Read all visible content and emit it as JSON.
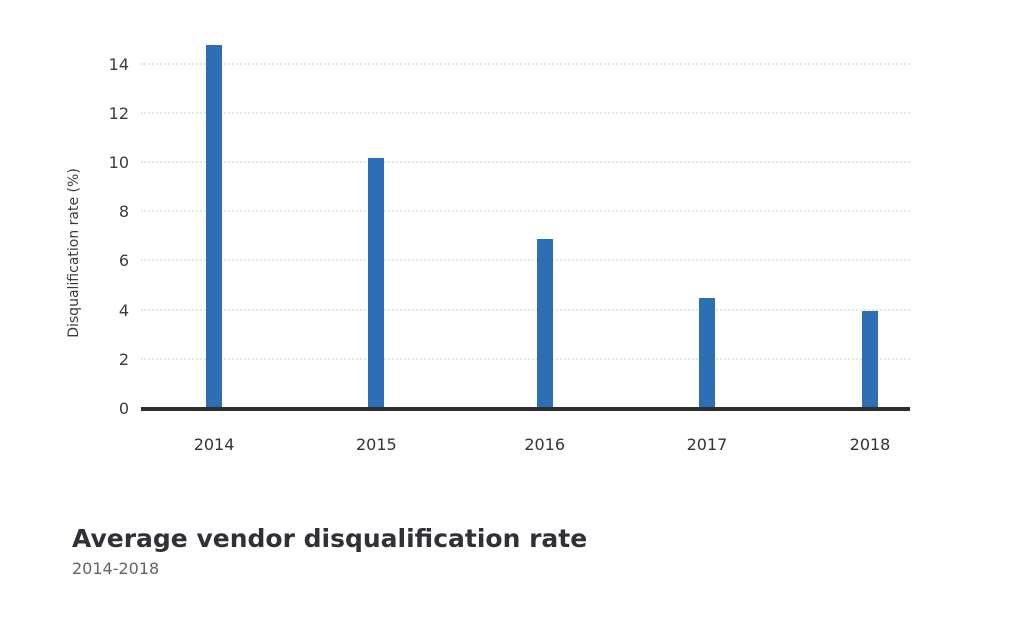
{
  "chart_data": {
    "type": "bar",
    "title": "Average vendor disqualification rate",
    "subtitle": "2014-2018",
    "xlabel": "",
    "ylabel": "Disqualification rate (%)",
    "categories": [
      "2014",
      "2015",
      "2016",
      "2017",
      "2018"
    ],
    "values": [
      14.8,
      10.2,
      6.9,
      4.5,
      4.0
    ],
    "ylim": [
      0,
      15
    ],
    "yticks": [
      0,
      2,
      4,
      6,
      8,
      10,
      12,
      14
    ],
    "grid": true,
    "legend": "none",
    "bar_color": "#2d6fb4",
    "axis_color": "#2e2e2e",
    "grid_color": "#e3e5ec",
    "bar_centers_pct": [
      9.5,
      30.6,
      52.5,
      73.6,
      94.8
    ]
  }
}
